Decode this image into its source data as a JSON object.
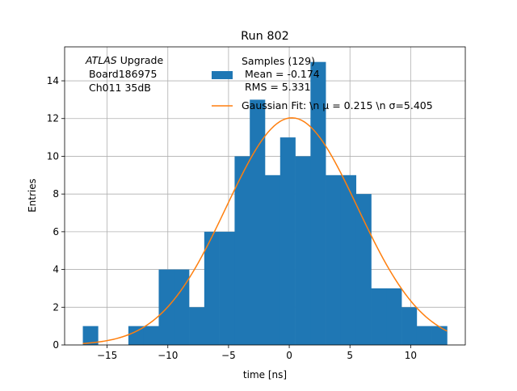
{
  "chart_data": {
    "type": "bar",
    "title": "Run 802",
    "xlabel": "time [ns]",
    "ylabel": "Entries",
    "xlim": [
      -18.5,
      14.5
    ],
    "ylim": [
      0,
      15.8
    ],
    "grid": true,
    "x_ticks": [
      -15,
      -10,
      -5,
      0,
      5,
      10
    ],
    "x_tick_labels": [
      "−15",
      "−10",
      "−5",
      "0",
      "5",
      "10"
    ],
    "y_ticks": [
      0,
      2,
      4,
      6,
      8,
      10,
      12,
      14
    ],
    "y_tick_labels": [
      "0",
      "2",
      "4",
      "6",
      "8",
      "10",
      "12",
      "14"
    ],
    "histogram": {
      "name": "Samples (129)",
      "color": "#1f77b4",
      "bins": [
        {
          "x0": -17.0,
          "x1": -15.75,
          "count": 1
        },
        {
          "x0": -15.75,
          "x1": -14.5,
          "count": 0
        },
        {
          "x0": -14.5,
          "x1": -13.25,
          "count": 0
        },
        {
          "x0": -13.25,
          "x1": -12.0,
          "count": 1
        },
        {
          "x0": -12.0,
          "x1": -10.75,
          "count": 1
        },
        {
          "x0": -10.75,
          "x1": -9.5,
          "count": 4
        },
        {
          "x0": -9.5,
          "x1": -8.25,
          "count": 4
        },
        {
          "x0": -8.25,
          "x1": -7.0,
          "count": 2
        },
        {
          "x0": -7.0,
          "x1": -5.75,
          "count": 6
        },
        {
          "x0": -5.75,
          "x1": -4.5,
          "count": 6
        },
        {
          "x0": -4.5,
          "x1": -3.25,
          "count": 10
        },
        {
          "x0": -3.25,
          "x1": -2.0,
          "count": 13
        },
        {
          "x0": -2.0,
          "x1": -0.75,
          "count": 9
        },
        {
          "x0": -0.75,
          "x1": 0.5,
          "count": 11
        },
        {
          "x0": 0.5,
          "x1": 1.75,
          "count": 10
        },
        {
          "x0": 1.75,
          "x1": 3.0,
          "count": 15
        },
        {
          "x0": 3.0,
          "x1": 4.25,
          "count": 9
        },
        {
          "x0": 4.25,
          "x1": 5.5,
          "count": 9
        },
        {
          "x0": 5.5,
          "x1": 6.75,
          "count": 8
        },
        {
          "x0": 6.75,
          "x1": 8.0,
          "count": 3
        },
        {
          "x0": 8.0,
          "x1": 9.25,
          "count": 3
        },
        {
          "x0": 9.25,
          "x1": 10.5,
          "count": 2
        },
        {
          "x0": 10.5,
          "x1": 11.75,
          "count": 1
        },
        {
          "x0": 11.75,
          "x1": 13.0,
          "count": 1
        }
      ]
    },
    "fit": {
      "label": "Gaussian Fit: \\n $\\mu$ = 0.215 \\n $\\sigma$=5.405",
      "color": "#ff7f0e",
      "mu": 0.215,
      "sigma": 5.405,
      "amplitude": 12.04,
      "x_range": [
        -17.0,
        13.0
      ]
    },
    "legend": {
      "placement": "top-center",
      "entries": [
        {
          "kind": "patch",
          "lines": [
            "Samples (129)",
            " Mean = -0.174",
            " RMS = 5.331"
          ],
          "color": "#1f77b4"
        },
        {
          "kind": "line",
          "lines": [
            "Gaussian Fit: \\n μ = 0.215 \\n σ=5.405"
          ],
          "color": "#ff7f0e"
        }
      ]
    },
    "annotation": {
      "placement": "top-left",
      "italic_word": "ATLAS",
      "line1_rest": " Upgrade",
      "line2": " Board186975",
      "line3": " Ch011 35dB"
    }
  }
}
